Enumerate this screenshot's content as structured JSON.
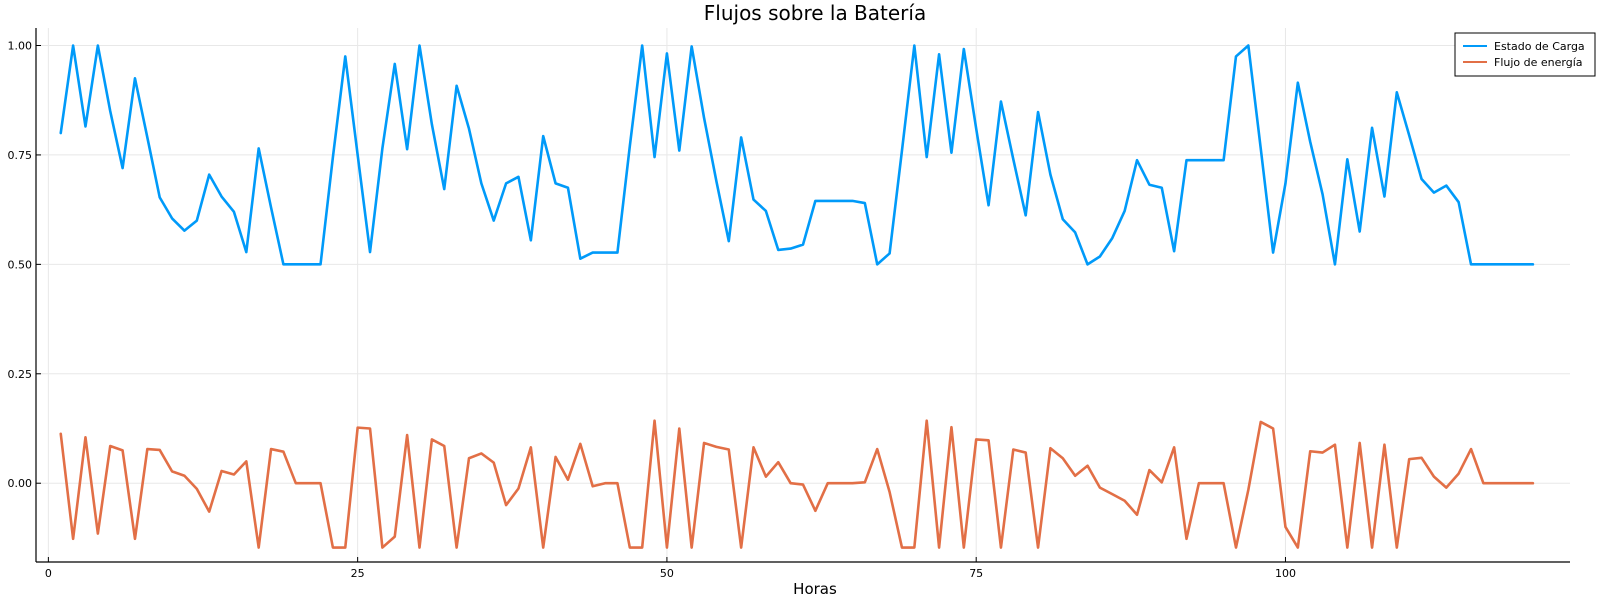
{
  "chart_data": {
    "type": "line",
    "title": "Flujos sobre la Batería",
    "xlabel": "Horas",
    "ylabel": "",
    "xlim": [
      -1,
      123
    ],
    "ylim": [
      -0.18,
      1.04
    ],
    "xticks": [
      0,
      25,
      50,
      75,
      100
    ],
    "xtick_labels": [
      "0",
      "25",
      "50",
      "75",
      "100"
    ],
    "yticks": [
      0,
      0.25,
      0.5,
      0.75,
      1.0
    ],
    "ytick_labels": [
      "0.00",
      "0.25",
      "0.50",
      "0.75",
      "1.00"
    ],
    "grid": true,
    "legend_position": "top-right",
    "series": [
      {
        "name": "Estado de Carga",
        "color": "#009af9",
        "x": [
          1,
          2,
          3,
          4,
          5,
          6,
          7,
          8,
          9,
          10,
          11,
          12,
          13,
          14,
          15,
          16,
          17,
          18,
          19,
          20,
          21,
          22,
          23,
          24,
          25,
          26,
          27,
          28,
          29,
          30,
          31,
          32,
          33,
          34,
          35,
          36,
          37,
          38,
          39,
          40,
          41,
          42,
          43,
          44,
          45,
          46,
          47,
          48,
          49,
          50,
          51,
          52,
          53,
          54,
          55,
          56,
          57,
          58,
          59,
          60,
          61,
          62,
          63,
          64,
          65,
          66,
          67,
          68,
          69,
          70,
          71,
          72,
          73,
          74,
          75,
          76,
          77,
          78,
          79,
          80,
          81,
          82,
          83,
          84,
          85,
          86,
          87,
          88,
          89,
          90,
          91,
          92,
          93,
          94,
          95,
          96,
          97,
          98,
          99,
          100,
          101,
          102,
          103,
          104,
          105,
          106,
          107,
          108,
          109,
          110,
          111,
          112,
          113,
          114,
          115,
          116,
          117,
          118,
          119,
          120
        ],
        "values": [
          0.8,
          1.0,
          0.815,
          1.0,
          0.85,
          0.72,
          0.925,
          0.79,
          0.653,
          0.605,
          0.577,
          0.6,
          0.705,
          0.655,
          0.62,
          0.528,
          0.765,
          0.63,
          0.5,
          0.5,
          0.5,
          0.5,
          0.745,
          0.975,
          0.75,
          0.528,
          0.765,
          0.958,
          0.763,
          1.0,
          0.82,
          0.672,
          0.908,
          0.81,
          0.685,
          0.6,
          0.685,
          0.7,
          0.555,
          0.793,
          0.685,
          0.675,
          0.513,
          0.527,
          0.527,
          0.527,
          0.77,
          1.0,
          0.745,
          0.982,
          0.76,
          0.998,
          0.835,
          0.69,
          0.553,
          0.79,
          0.648,
          0.622,
          0.533,
          0.536,
          0.545,
          0.645,
          0.645,
          0.645,
          0.645,
          0.64,
          0.5,
          0.525,
          0.76,
          1.0,
          0.745,
          0.98,
          0.755,
          0.992,
          0.81,
          0.635,
          0.872,
          0.74,
          0.612,
          0.848,
          0.705,
          0.603,
          0.573,
          0.5,
          0.518,
          0.56,
          0.622,
          0.738,
          0.682,
          0.675,
          0.53,
          0.738,
          0.738,
          0.738,
          0.738,
          0.975,
          1.0,
          0.765,
          0.527,
          0.685,
          0.915,
          0.78,
          0.66,
          0.5,
          0.74,
          0.575,
          0.812,
          0.655,
          0.893,
          0.795,
          0.695,
          0.664,
          0.68,
          0.642,
          0.5,
          0.5,
          0.5,
          0.5,
          0.5,
          0.5
        ]
      },
      {
        "name": "Flujo de energía",
        "color": "#e26f46",
        "x": [
          1,
          2,
          3,
          4,
          5,
          6,
          7,
          8,
          9,
          10,
          11,
          12,
          13,
          14,
          15,
          16,
          17,
          18,
          19,
          20,
          21,
          22,
          23,
          24,
          25,
          26,
          27,
          28,
          29,
          30,
          31,
          32,
          33,
          34,
          35,
          36,
          37,
          38,
          39,
          40,
          41,
          42,
          43,
          44,
          45,
          46,
          47,
          48,
          49,
          50,
          51,
          52,
          53,
          54,
          55,
          56,
          57,
          58,
          59,
          60,
          61,
          62,
          63,
          64,
          65,
          66,
          67,
          68,
          69,
          70,
          71,
          72,
          73,
          74,
          75,
          76,
          77,
          78,
          79,
          80,
          81,
          82,
          83,
          84,
          85,
          86,
          87,
          88,
          89,
          90,
          91,
          92,
          93,
          94,
          95,
          96,
          97,
          98,
          99,
          100,
          101,
          102,
          103,
          104,
          105,
          106,
          107,
          108,
          109,
          110,
          111,
          112,
          113,
          114,
          115,
          116,
          117,
          118,
          119,
          120
        ],
        "values": [
          0.113,
          -0.127,
          0.105,
          -0.115,
          0.085,
          0.075,
          -0.127,
          0.078,
          0.076,
          0.027,
          0.017,
          -0.013,
          -0.065,
          0.028,
          0.02,
          0.05,
          -0.147,
          0.078,
          0.072,
          0.0,
          0.0,
          0.0,
          -0.147,
          -0.147,
          0.127,
          0.125,
          -0.147,
          -0.122,
          0.11,
          -0.147,
          0.1,
          0.085,
          -0.147,
          0.057,
          0.068,
          0.047,
          -0.05,
          -0.012,
          0.082,
          -0.147,
          0.06,
          0.008,
          0.09,
          -0.007,
          0.0,
          0.0,
          -0.147,
          -0.147,
          0.143,
          -0.147,
          0.125,
          -0.147,
          0.092,
          0.083,
          0.077,
          -0.147,
          0.082,
          0.015,
          0.048,
          0.0,
          -0.003,
          -0.063,
          0.0,
          0.0,
          0.0,
          0.002,
          0.078,
          -0.02,
          -0.147,
          -0.147,
          0.143,
          -0.147,
          0.128,
          -0.147,
          0.1,
          0.098,
          -0.147,
          0.077,
          0.07,
          -0.147,
          0.08,
          0.057,
          0.017,
          0.04,
          -0.01,
          -0.025,
          -0.04,
          -0.072,
          0.03,
          0.002,
          0.082,
          -0.127,
          0.0,
          0.0,
          0.0,
          -0.147,
          -0.015,
          0.14,
          0.125,
          -0.1,
          -0.147,
          0.073,
          0.07,
          0.088,
          -0.147,
          0.092,
          -0.147,
          0.088,
          -0.147,
          0.055,
          0.058,
          0.015,
          -0.01,
          0.022,
          0.078,
          0.0,
          0.0,
          0.0,
          0.0,
          0.0
        ]
      }
    ]
  }
}
